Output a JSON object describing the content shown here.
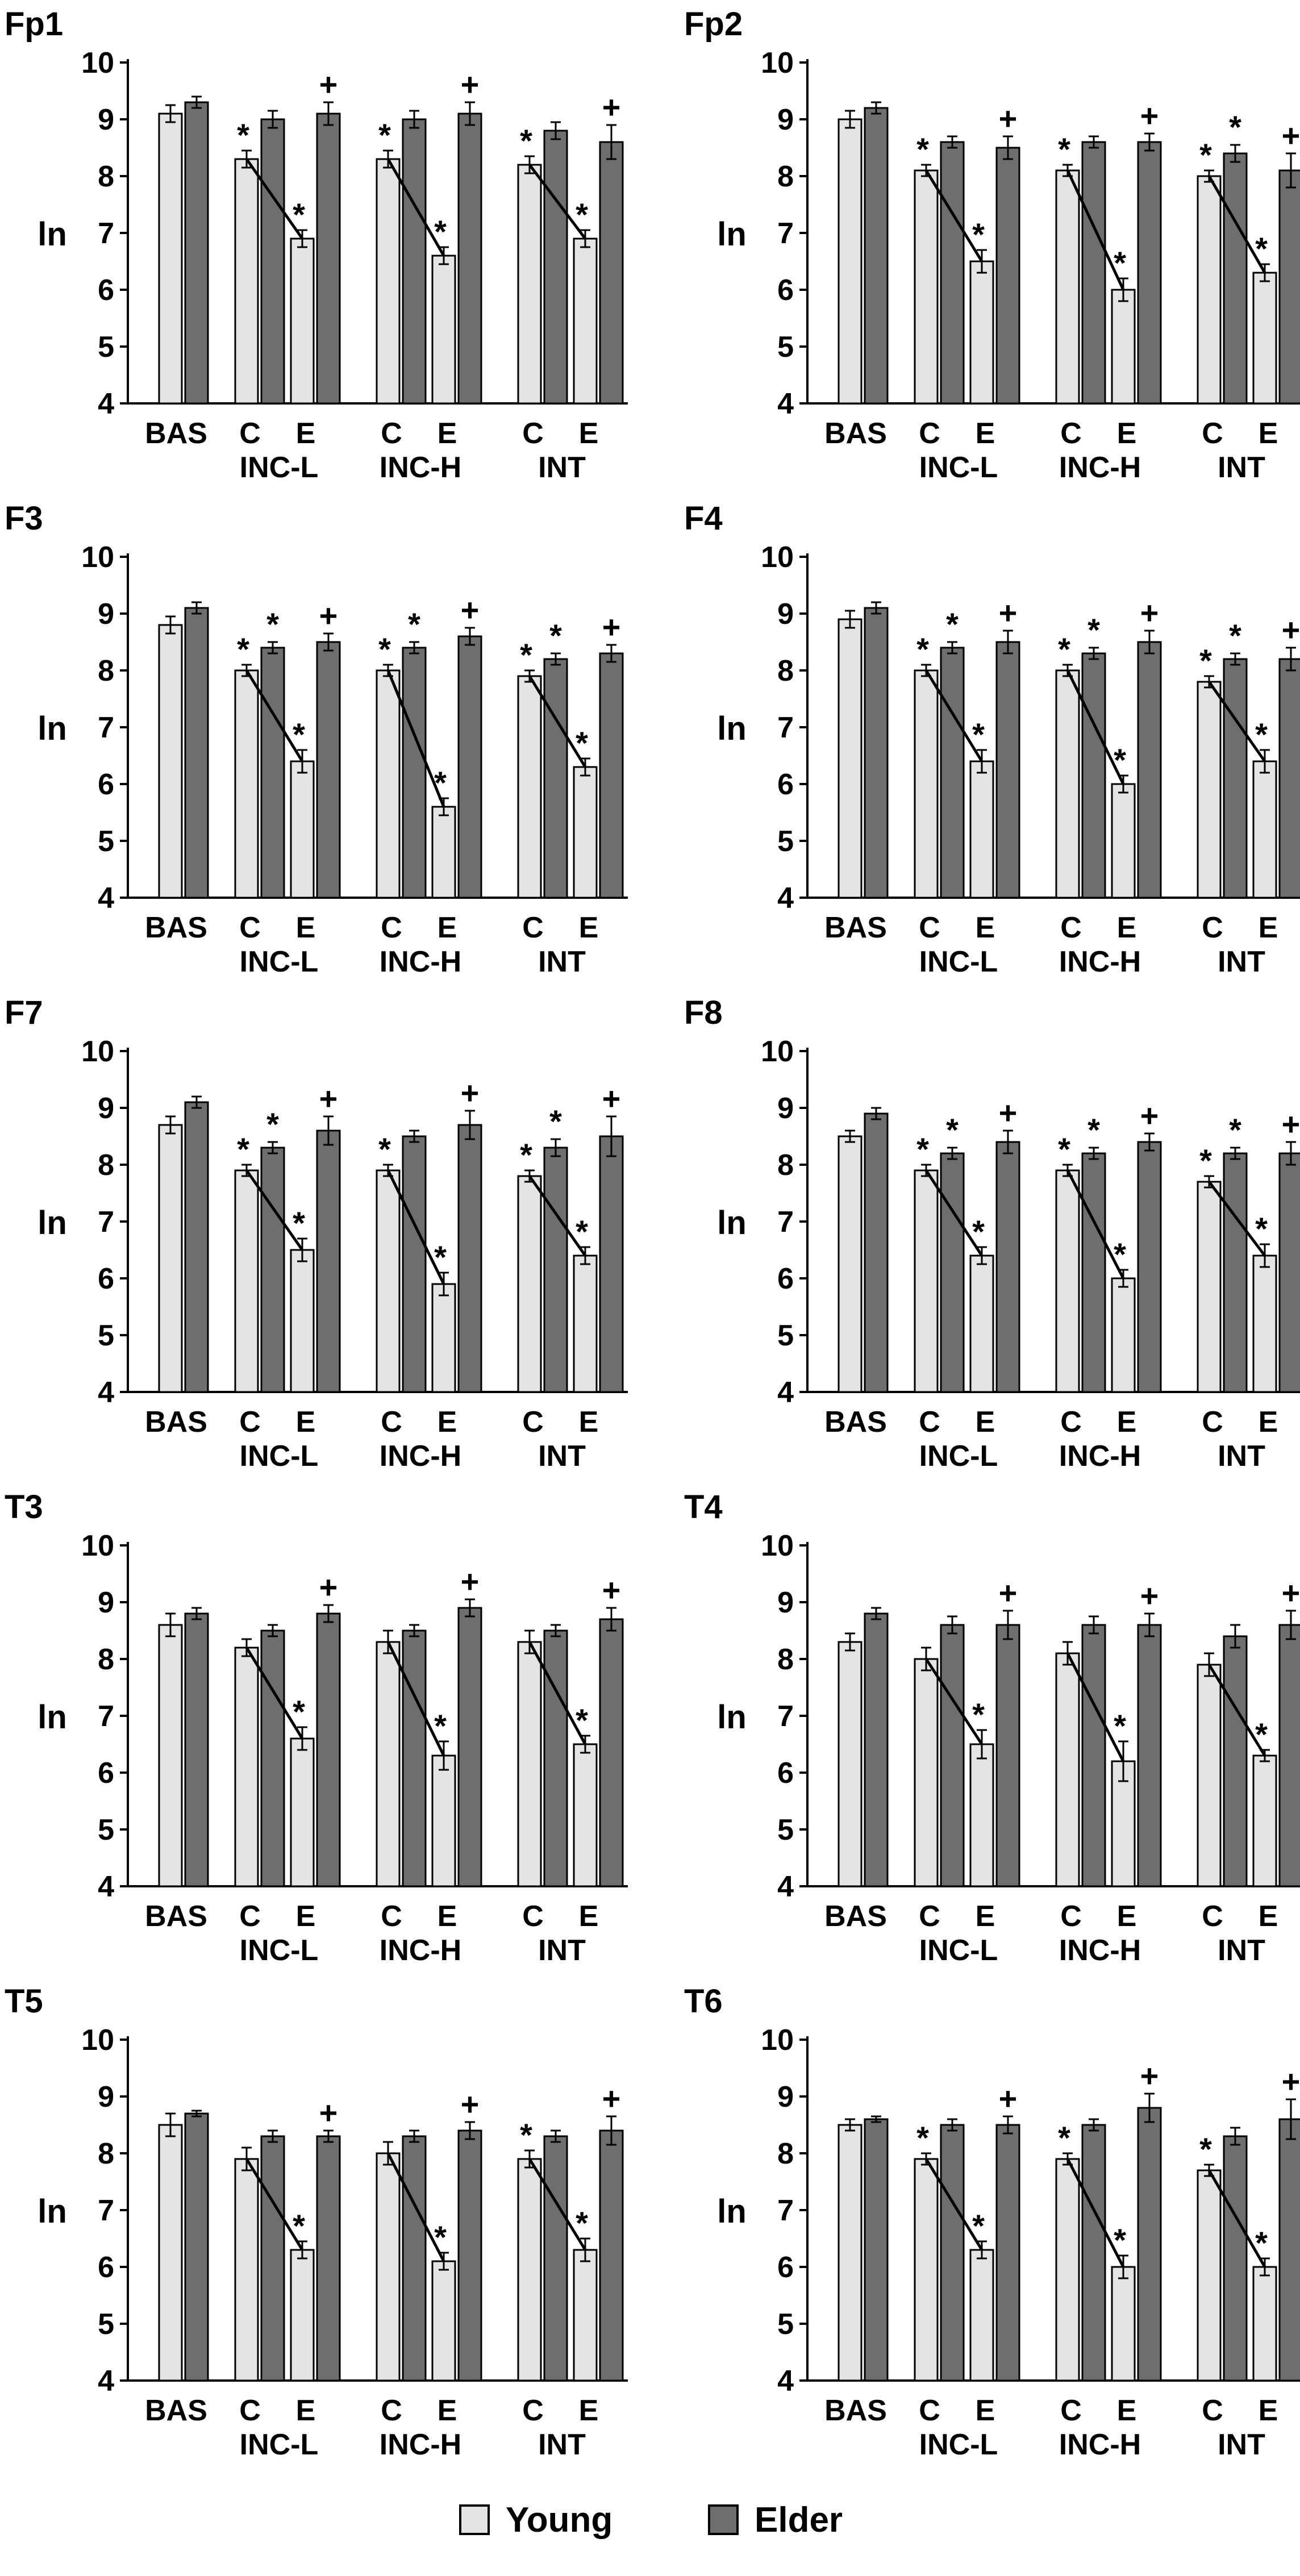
{
  "chart_data": [
    {
      "type": "bar",
      "title": "Fp1",
      "ylabel": "ln",
      "ylim": [
        4,
        10
      ],
      "yticks": [
        "4",
        "5",
        "6",
        "7",
        "8",
        "9",
        "10"
      ],
      "xlabels": [
        "BAS",
        "C",
        "E",
        "C",
        "E",
        "C",
        "E"
      ],
      "groups": [
        "INC-L",
        "INC-H",
        "INT"
      ],
      "series": [
        {
          "name": "Young",
          "values": [
            9.1,
            8.3,
            6.9,
            8.3,
            6.6,
            8.2,
            6.9
          ],
          "errors": [
            0.15,
            0.15,
            0.15,
            0.15,
            0.15,
            0.15,
            0.15
          ]
        },
        {
          "name": "Elder",
          "values": [
            9.3,
            9.0,
            9.1,
            9.0,
            9.1,
            8.8,
            8.6
          ],
          "errors": [
            0.1,
            0.15,
            0.2,
            0.15,
            0.2,
            0.15,
            0.3
          ]
        }
      ],
      "young_markers": [
        "",
        "*",
        "*",
        "*",
        "*",
        "*",
        "*"
      ],
      "elder_markers": [
        "",
        "",
        "+",
        "",
        "+",
        "",
        "+"
      ]
    },
    {
      "type": "bar",
      "title": "Fp2",
      "ylabel": "ln",
      "ylim": [
        4,
        10
      ],
      "yticks": [
        "4",
        "5",
        "6",
        "7",
        "8",
        "9",
        "10"
      ],
      "xlabels": [
        "BAS",
        "C",
        "E",
        "C",
        "E",
        "C",
        "E"
      ],
      "groups": [
        "INC-L",
        "INC-H",
        "INT"
      ],
      "series": [
        {
          "name": "Young",
          "values": [
            9.0,
            8.1,
            6.5,
            8.1,
            6.0,
            8.0,
            6.3
          ],
          "errors": [
            0.15,
            0.1,
            0.2,
            0.1,
            0.2,
            0.1,
            0.15
          ]
        },
        {
          "name": "Elder",
          "values": [
            9.2,
            8.6,
            8.5,
            8.6,
            8.6,
            8.4,
            8.1
          ],
          "errors": [
            0.1,
            0.1,
            0.2,
            0.1,
            0.15,
            0.15,
            0.3
          ]
        }
      ],
      "young_markers": [
        "",
        "*",
        "*",
        "*",
        "*",
        "*",
        "*"
      ],
      "elder_markers": [
        "",
        "",
        "+",
        "",
        "+",
        "*",
        "+"
      ]
    },
    {
      "type": "bar",
      "title": "F3",
      "ylabel": "ln",
      "ylim": [
        4,
        10
      ],
      "yticks": [
        "4",
        "5",
        "6",
        "7",
        "8",
        "9",
        "10"
      ],
      "xlabels": [
        "BAS",
        "C",
        "E",
        "C",
        "E",
        "C",
        "E"
      ],
      "groups": [
        "INC-L",
        "INC-H",
        "INT"
      ],
      "series": [
        {
          "name": "Young",
          "values": [
            8.8,
            8.0,
            6.4,
            8.0,
            5.6,
            7.9,
            6.3
          ],
          "errors": [
            0.15,
            0.1,
            0.2,
            0.1,
            0.15,
            0.1,
            0.15
          ]
        },
        {
          "name": "Elder",
          "values": [
            9.1,
            8.4,
            8.5,
            8.4,
            8.6,
            8.2,
            8.3
          ],
          "errors": [
            0.1,
            0.1,
            0.15,
            0.1,
            0.15,
            0.1,
            0.15
          ]
        }
      ],
      "young_markers": [
        "",
        "*",
        "*",
        "*",
        "*",
        "*",
        "*"
      ],
      "elder_markers": [
        "",
        "*",
        "+",
        "*",
        "+",
        "*",
        "+"
      ]
    },
    {
      "type": "bar",
      "title": "F4",
      "ylabel": "ln",
      "ylim": [
        4,
        10
      ],
      "yticks": [
        "4",
        "5",
        "6",
        "7",
        "8",
        "9",
        "10"
      ],
      "xlabels": [
        "BAS",
        "C",
        "E",
        "C",
        "E",
        "C",
        "E"
      ],
      "groups": [
        "INC-L",
        "INC-H",
        "INT"
      ],
      "series": [
        {
          "name": "Young",
          "values": [
            8.9,
            8.0,
            6.4,
            8.0,
            6.0,
            7.8,
            6.4
          ],
          "errors": [
            0.15,
            0.1,
            0.2,
            0.1,
            0.15,
            0.1,
            0.2
          ]
        },
        {
          "name": "Elder",
          "values": [
            9.1,
            8.4,
            8.5,
            8.3,
            8.5,
            8.2,
            8.2
          ],
          "errors": [
            0.1,
            0.1,
            0.2,
            0.1,
            0.2,
            0.1,
            0.2
          ]
        }
      ],
      "young_markers": [
        "",
        "*",
        "*",
        "*",
        "*",
        "*",
        "*"
      ],
      "elder_markers": [
        "",
        "*",
        "+",
        "*",
        "+",
        "*",
        "+"
      ]
    },
    {
      "type": "bar",
      "title": "F7",
      "ylabel": "ln",
      "ylim": [
        4,
        10
      ],
      "yticks": [
        "4",
        "5",
        "6",
        "7",
        "8",
        "9",
        "10"
      ],
      "xlabels": [
        "BAS",
        "C",
        "E",
        "C",
        "E",
        "C",
        "E"
      ],
      "groups": [
        "INC-L",
        "INC-H",
        "INT"
      ],
      "series": [
        {
          "name": "Young",
          "values": [
            8.7,
            7.9,
            6.5,
            7.9,
            5.9,
            7.8,
            6.4
          ],
          "errors": [
            0.15,
            0.1,
            0.2,
            0.1,
            0.2,
            0.1,
            0.15
          ]
        },
        {
          "name": "Elder",
          "values": [
            9.1,
            8.3,
            8.6,
            8.5,
            8.7,
            8.3,
            8.5
          ],
          "errors": [
            0.1,
            0.1,
            0.25,
            0.1,
            0.25,
            0.15,
            0.35
          ]
        }
      ],
      "young_markers": [
        "",
        "*",
        "*",
        "*",
        "*",
        "*",
        "*"
      ],
      "elder_markers": [
        "",
        "*",
        "+",
        "",
        "+",
        "*",
        "+"
      ]
    },
    {
      "type": "bar",
      "title": "F8",
      "ylabel": "ln",
      "ylim": [
        4,
        10
      ],
      "yticks": [
        "4",
        "5",
        "6",
        "7",
        "8",
        "9",
        "10"
      ],
      "xlabels": [
        "BAS",
        "C",
        "E",
        "C",
        "E",
        "C",
        "E"
      ],
      "groups": [
        "INC-L",
        "INC-H",
        "INT"
      ],
      "series": [
        {
          "name": "Young",
          "values": [
            8.5,
            7.9,
            6.4,
            7.9,
            6.0,
            7.7,
            6.4
          ],
          "errors": [
            0.1,
            0.1,
            0.15,
            0.1,
            0.15,
            0.1,
            0.2
          ]
        },
        {
          "name": "Elder",
          "values": [
            8.9,
            8.2,
            8.4,
            8.2,
            8.4,
            8.2,
            8.2
          ],
          "errors": [
            0.1,
            0.1,
            0.2,
            0.1,
            0.15,
            0.1,
            0.2
          ]
        }
      ],
      "young_markers": [
        "",
        "*",
        "*",
        "*",
        "*",
        "*",
        "*"
      ],
      "elder_markers": [
        "",
        "*",
        "+",
        "*",
        "+",
        "*",
        "+"
      ]
    },
    {
      "type": "bar",
      "title": "T3",
      "ylabel": "ln",
      "ylim": [
        4,
        10
      ],
      "yticks": [
        "4",
        "5",
        "6",
        "7",
        "8",
        "9",
        "10"
      ],
      "xlabels": [
        "BAS",
        "C",
        "E",
        "C",
        "E",
        "C",
        "E"
      ],
      "groups": [
        "INC-L",
        "INC-H",
        "INT"
      ],
      "series": [
        {
          "name": "Young",
          "values": [
            8.6,
            8.2,
            6.6,
            8.3,
            6.3,
            8.3,
            6.5
          ],
          "errors": [
            0.2,
            0.15,
            0.2,
            0.2,
            0.25,
            0.2,
            0.15
          ]
        },
        {
          "name": "Elder",
          "values": [
            8.8,
            8.5,
            8.8,
            8.5,
            8.9,
            8.5,
            8.7
          ],
          "errors": [
            0.1,
            0.1,
            0.15,
            0.1,
            0.15,
            0.1,
            0.2
          ]
        }
      ],
      "young_markers": [
        "",
        "",
        "*",
        "",
        "*",
        "",
        "*"
      ],
      "elder_markers": [
        "",
        "",
        "+",
        "",
        "+",
        "",
        "+"
      ]
    },
    {
      "type": "bar",
      "title": "T4",
      "ylabel": "ln",
      "ylim": [
        4,
        10
      ],
      "yticks": [
        "4",
        "5",
        "6",
        "7",
        "8",
        "9",
        "10"
      ],
      "xlabels": [
        "BAS",
        "C",
        "E",
        "C",
        "E",
        "C",
        "E"
      ],
      "groups": [
        "INC-L",
        "INC-H",
        "INT"
      ],
      "series": [
        {
          "name": "Young",
          "values": [
            8.3,
            8.0,
            6.5,
            8.1,
            6.2,
            7.9,
            6.3
          ],
          "errors": [
            0.15,
            0.2,
            0.25,
            0.2,
            0.35,
            0.2,
            0.1
          ]
        },
        {
          "name": "Elder",
          "values": [
            8.8,
            8.6,
            8.6,
            8.6,
            8.6,
            8.4,
            8.6
          ],
          "errors": [
            0.1,
            0.15,
            0.25,
            0.15,
            0.2,
            0.2,
            0.25
          ]
        }
      ],
      "young_markers": [
        "",
        "",
        "*",
        "",
        "*",
        "",
        "*"
      ],
      "elder_markers": [
        "",
        "",
        "+",
        "",
        "+",
        "",
        "+"
      ]
    },
    {
      "type": "bar",
      "title": "T5",
      "ylabel": "ln",
      "ylim": [
        4,
        10
      ],
      "yticks": [
        "4",
        "5",
        "6",
        "7",
        "8",
        "9",
        "10"
      ],
      "xlabels": [
        "BAS",
        "C",
        "E",
        "C",
        "E",
        "C",
        "E"
      ],
      "groups": [
        "INC-L",
        "INC-H",
        "INT"
      ],
      "series": [
        {
          "name": "Young",
          "values": [
            8.5,
            7.9,
            6.3,
            8.0,
            6.1,
            7.9,
            6.3
          ],
          "errors": [
            0.2,
            0.2,
            0.15,
            0.2,
            0.15,
            0.15,
            0.2
          ]
        },
        {
          "name": "Elder",
          "values": [
            8.7,
            8.3,
            8.3,
            8.3,
            8.4,
            8.3,
            8.4
          ],
          "errors": [
            0.05,
            0.1,
            0.1,
            0.1,
            0.15,
            0.1,
            0.25
          ]
        }
      ],
      "young_markers": [
        "",
        "",
        "*",
        "",
        "*",
        "*",
        "*"
      ],
      "elder_markers": [
        "",
        "",
        "+",
        "",
        "+",
        "",
        "+"
      ]
    },
    {
      "type": "bar",
      "title": "T6",
      "ylabel": "ln",
      "ylim": [
        4,
        10
      ],
      "yticks": [
        "4",
        "5",
        "6",
        "7",
        "8",
        "9",
        "10"
      ],
      "xlabels": [
        "BAS",
        "C",
        "E",
        "C",
        "E",
        "C",
        "E"
      ],
      "groups": [
        "INC-L",
        "INC-H",
        "INT"
      ],
      "series": [
        {
          "name": "Young",
          "values": [
            8.5,
            7.9,
            6.3,
            7.9,
            6.0,
            7.7,
            6.0
          ],
          "errors": [
            0.1,
            0.1,
            0.15,
            0.1,
            0.2,
            0.1,
            0.15
          ]
        },
        {
          "name": "Elder",
          "values": [
            8.6,
            8.5,
            8.5,
            8.5,
            8.8,
            8.3,
            8.6
          ],
          "errors": [
            0.05,
            0.1,
            0.15,
            0.1,
            0.25,
            0.15,
            0.35
          ]
        }
      ],
      "young_markers": [
        "",
        "*",
        "*",
        "*",
        "*",
        "*",
        "*"
      ],
      "elder_markers": [
        "",
        "",
        "+",
        "",
        "+",
        "",
        "+"
      ]
    }
  ],
  "legend": {
    "young_label": "Young",
    "elder_label": "Elder",
    "young_color": "#e4e4e4",
    "elder_color": "#6e6e6e"
  }
}
